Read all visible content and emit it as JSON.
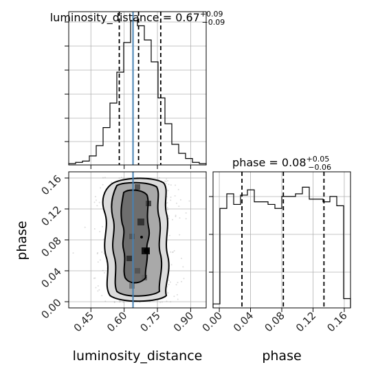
{
  "chart_data": {
    "type": "corner",
    "parameters": [
      "luminosity_distance",
      "phase"
    ],
    "x_tick_labels": {
      "luminosity_distance": [
        "0.45",
        "0.60",
        "0.75",
        "0.90"
      ],
      "phase": [
        "0.00",
        "0.04",
        "0.08",
        "0.12",
        "0.16"
      ]
    },
    "y_tick_labels": {
      "phase": [
        "0.00",
        "0.04",
        "0.08",
        "0.12",
        "0.16"
      ]
    },
    "grid": true,
    "titles": {
      "luminosity_distance": {
        "prefix": "luminosity_distance = ",
        "median": "0.67",
        "plus": "+0.09",
        "minus": "−0.09"
      },
      "phase": {
        "prefix": "phase = ",
        "median": "0.08",
        "plus": "+0.05",
        "minus": "−0.06"
      }
    },
    "xlabels": [
      "luminosity_distance",
      "phase"
    ],
    "ylabels": [
      "phase"
    ],
    "ranges": {
      "luminosity_distance": [
        0.35,
        0.97
      ],
      "phase": [
        -0.008,
        0.168
      ]
    },
    "truth": {
      "luminosity_distance": 0.64,
      "truth_color": "#4682b4"
    },
    "quantiles": {
      "luminosity_distance": [
        0.578,
        0.665,
        0.765
      ],
      "phase": [
        0.029,
        0.082,
        0.134
      ]
    },
    "marginal_luminosity_distance": {
      "bin_edges": [
        0.35,
        0.381,
        0.412,
        0.443,
        0.474,
        0.505,
        0.536,
        0.567,
        0.598,
        0.629,
        0.66,
        0.691,
        0.722,
        0.753,
        0.784,
        0.815,
        0.846,
        0.877,
        0.908,
        0.939,
        0.97
      ],
      "counts": [
        1,
        2,
        3,
        7,
        15,
        29,
        48,
        72,
        95,
        112,
        108,
        97,
        80,
        52,
        32,
        16,
        9,
        5,
        2,
        1
      ]
    },
    "marginal_phase": {
      "bin_edges": [
        -0.008,
        0.0008,
        0.0096,
        0.0184,
        0.0272,
        0.036,
        0.0448,
        0.0536,
        0.0624,
        0.0712,
        0.08,
        0.0888,
        0.0976,
        0.1064,
        0.1152,
        0.124,
        0.1328,
        0.1416,
        0.1504,
        0.1592,
        0.168
      ],
      "counts": [
        3,
        75,
        86,
        78,
        85,
        89,
        80,
        80,
        78,
        75,
        84,
        84,
        86,
        91,
        82,
        82,
        80,
        84,
        77,
        7
      ]
    },
    "density_levels": [
      0.393,
      0.865,
      0.989
    ]
  }
}
